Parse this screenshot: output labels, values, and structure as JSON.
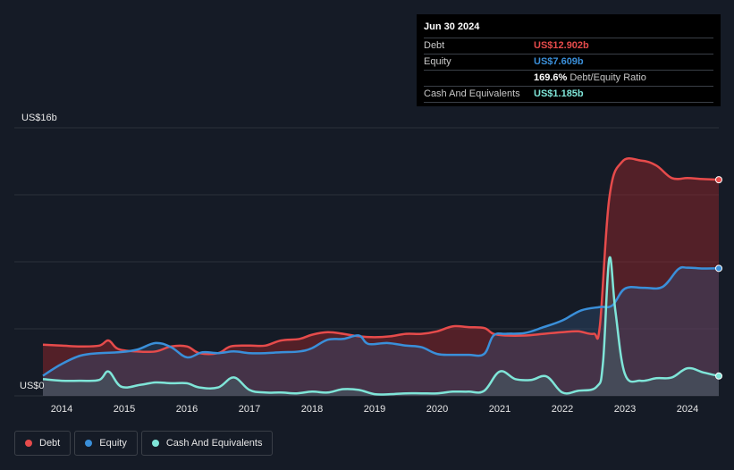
{
  "tooltip": {
    "date": "Jun 30 2024",
    "rows": [
      {
        "label": "Debt",
        "value": "US$12.902b",
        "color": "#e64b4b"
      },
      {
        "label": "Equity",
        "value": "US$7.609b",
        "color": "#3a8fd9"
      },
      {
        "label": "",
        "value": "169.6%",
        "suffix": "Debt/Equity Ratio",
        "color": "#ffffff"
      },
      {
        "label": "Cash And Equivalents",
        "value": "US$1.185b",
        "color": "#7fe5d8"
      }
    ]
  },
  "legend": [
    {
      "label": "Debt",
      "color": "#e64b4b"
    },
    {
      "label": "Equity",
      "color": "#3a8fd9"
    },
    {
      "label": "Cash And Equivalents",
      "color": "#7fe5d8"
    }
  ],
  "chart_data": {
    "type": "area",
    "y_top_label": "US$16b",
    "y_bottom_label": "US$0",
    "ylim": [
      0,
      16
    ],
    "xlim": [
      2013.7,
      2024.5
    ],
    "x_ticks": [
      "2014",
      "2015",
      "2016",
      "2017",
      "2018",
      "2019",
      "2020",
      "2021",
      "2022",
      "2023",
      "2024"
    ],
    "series": [
      {
        "name": "Debt",
        "color": "#e64b4b",
        "points": [
          [
            2013.7,
            3.05
          ],
          [
            2014.0,
            3.0
          ],
          [
            2014.3,
            2.95
          ],
          [
            2014.6,
            3.0
          ],
          [
            2014.75,
            3.3
          ],
          [
            2014.9,
            2.8
          ],
          [
            2015.2,
            2.65
          ],
          [
            2015.5,
            2.65
          ],
          [
            2015.75,
            2.95
          ],
          [
            2016.0,
            2.95
          ],
          [
            2016.2,
            2.55
          ],
          [
            2016.5,
            2.55
          ],
          [
            2016.7,
            2.95
          ],
          [
            2017.0,
            3.0
          ],
          [
            2017.25,
            3.0
          ],
          [
            2017.5,
            3.3
          ],
          [
            2017.8,
            3.4
          ],
          [
            2018.0,
            3.65
          ],
          [
            2018.25,
            3.8
          ],
          [
            2018.5,
            3.7
          ],
          [
            2018.75,
            3.55
          ],
          [
            2019.0,
            3.5
          ],
          [
            2019.25,
            3.55
          ],
          [
            2019.5,
            3.7
          ],
          [
            2019.75,
            3.7
          ],
          [
            2020.0,
            3.85
          ],
          [
            2020.25,
            4.15
          ],
          [
            2020.5,
            4.1
          ],
          [
            2020.75,
            4.05
          ],
          [
            2020.9,
            3.7
          ],
          [
            2021.1,
            3.6
          ],
          [
            2021.4,
            3.6
          ],
          [
            2021.7,
            3.7
          ],
          [
            2022.0,
            3.8
          ],
          [
            2022.25,
            3.85
          ],
          [
            2022.5,
            3.7
          ],
          [
            2022.6,
            4.2
          ],
          [
            2022.75,
            11.8
          ],
          [
            2022.95,
            13.95
          ],
          [
            2023.25,
            14.05
          ],
          [
            2023.5,
            13.75
          ],
          [
            2023.75,
            13.0
          ],
          [
            2024.0,
            13.0
          ],
          [
            2024.2,
            12.95
          ],
          [
            2024.5,
            12.9
          ]
        ]
      },
      {
        "name": "Equity",
        "color": "#3a8fd9",
        "points": [
          [
            2013.7,
            1.2
          ],
          [
            2014.0,
            1.9
          ],
          [
            2014.3,
            2.4
          ],
          [
            2014.6,
            2.55
          ],
          [
            2014.9,
            2.6
          ],
          [
            2015.2,
            2.75
          ],
          [
            2015.5,
            3.15
          ],
          [
            2015.75,
            2.9
          ],
          [
            2016.0,
            2.3
          ],
          [
            2016.25,
            2.6
          ],
          [
            2016.5,
            2.55
          ],
          [
            2016.75,
            2.65
          ],
          [
            2017.0,
            2.55
          ],
          [
            2017.25,
            2.55
          ],
          [
            2017.5,
            2.6
          ],
          [
            2017.8,
            2.65
          ],
          [
            2018.0,
            2.85
          ],
          [
            2018.25,
            3.35
          ],
          [
            2018.5,
            3.4
          ],
          [
            2018.75,
            3.6
          ],
          [
            2018.9,
            3.1
          ],
          [
            2019.2,
            3.15
          ],
          [
            2019.5,
            3.0
          ],
          [
            2019.75,
            2.9
          ],
          [
            2020.0,
            2.5
          ],
          [
            2020.25,
            2.45
          ],
          [
            2020.5,
            2.45
          ],
          [
            2020.75,
            2.5
          ],
          [
            2020.9,
            3.6
          ],
          [
            2021.1,
            3.7
          ],
          [
            2021.4,
            3.75
          ],
          [
            2021.7,
            4.1
          ],
          [
            2022.0,
            4.5
          ],
          [
            2022.3,
            5.1
          ],
          [
            2022.6,
            5.3
          ],
          [
            2022.8,
            5.4
          ],
          [
            2023.0,
            6.4
          ],
          [
            2023.3,
            6.45
          ],
          [
            2023.6,
            6.5
          ],
          [
            2023.85,
            7.55
          ],
          [
            2024.0,
            7.65
          ],
          [
            2024.25,
            7.6
          ],
          [
            2024.5,
            7.609
          ]
        ]
      },
      {
        "name": "Cash And Equivalents",
        "color": "#7fe5d8",
        "points": [
          [
            2013.7,
            1.0
          ],
          [
            2014.0,
            0.9
          ],
          [
            2014.3,
            0.9
          ],
          [
            2014.6,
            0.95
          ],
          [
            2014.75,
            1.45
          ],
          [
            2014.95,
            0.55
          ],
          [
            2015.25,
            0.65
          ],
          [
            2015.5,
            0.8
          ],
          [
            2015.75,
            0.75
          ],
          [
            2016.0,
            0.75
          ],
          [
            2016.2,
            0.5
          ],
          [
            2016.5,
            0.5
          ],
          [
            2016.75,
            1.1
          ],
          [
            2017.0,
            0.35
          ],
          [
            2017.25,
            0.2
          ],
          [
            2017.5,
            0.2
          ],
          [
            2017.75,
            0.15
          ],
          [
            2018.0,
            0.25
          ],
          [
            2018.25,
            0.2
          ],
          [
            2018.5,
            0.4
          ],
          [
            2018.75,
            0.35
          ],
          [
            2019.0,
            0.1
          ],
          [
            2019.25,
            0.1
          ],
          [
            2019.5,
            0.15
          ],
          [
            2019.75,
            0.15
          ],
          [
            2020.0,
            0.15
          ],
          [
            2020.25,
            0.25
          ],
          [
            2020.5,
            0.25
          ],
          [
            2020.75,
            0.3
          ],
          [
            2021.0,
            1.45
          ],
          [
            2021.25,
            1.0
          ],
          [
            2021.5,
            0.95
          ],
          [
            2021.75,
            1.15
          ],
          [
            2022.0,
            0.2
          ],
          [
            2022.25,
            0.3
          ],
          [
            2022.55,
            0.55
          ],
          [
            2022.65,
            2.0
          ],
          [
            2022.75,
            8.2
          ],
          [
            2022.85,
            5.0
          ],
          [
            2023.0,
            1.3
          ],
          [
            2023.25,
            0.9
          ],
          [
            2023.5,
            1.05
          ],
          [
            2023.75,
            1.1
          ],
          [
            2024.0,
            1.65
          ],
          [
            2024.25,
            1.4
          ],
          [
            2024.5,
            1.185
          ]
        ]
      }
    ]
  }
}
